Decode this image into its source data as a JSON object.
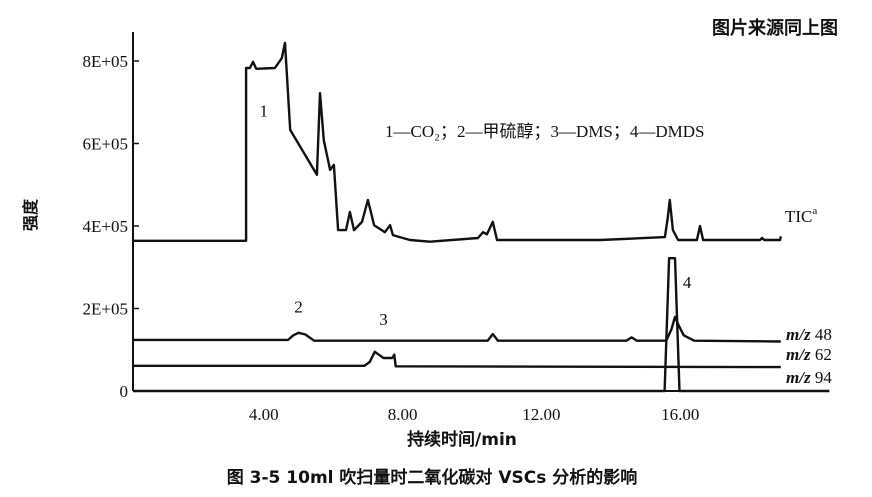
{
  "source_note": "图片来源同上图",
  "caption": "图 3-5   10ml 吹扫量时二氧化碳对 VSCs 分析的影响",
  "chart_data": {
    "type": "line",
    "title": "",
    "xlabel": "持续时间/min",
    "ylabel": "强度",
    "xlim": [
      0.2,
      20.3
    ],
    "ylim": [
      0,
      880000
    ],
    "x_ticks": [
      "4.00",
      "8.00",
      "12.00",
      "16.00"
    ],
    "x_tick_values": [
      4,
      8,
      12,
      16
    ],
    "y_ticks": [
      "0",
      "2E+05",
      "4E+05",
      "6E+05",
      "8E+05"
    ],
    "y_tick_values": [
      0,
      200000,
      400000,
      600000,
      800000
    ],
    "grid": false,
    "legend_text": "1—CO₂；2—甲硫醇；3—DMS；4—DMDS",
    "peak_labels": [
      {
        "text": "1",
        "x": 4.0,
        "y": 665000
      },
      {
        "text": "2",
        "x": 5.0,
        "y": 190000
      },
      {
        "text": "3",
        "x": 7.45,
        "y": 160000
      },
      {
        "text": "4",
        "x": 16.2,
        "y": 250000
      }
    ],
    "series": [
      {
        "name": "TIC",
        "name_sup": "a",
        "x": [
          0.23,
          3.49,
          3.49,
          3.6,
          3.69,
          3.78,
          4.32,
          4.52,
          4.61,
          4.76,
          5.53,
          5.62,
          5.73,
          5.91,
          6.02,
          6.14,
          6.37,
          6.48,
          6.6,
          6.83,
          7.0,
          7.18,
          7.49,
          7.64,
          7.72,
          8.21,
          8.79,
          10.17,
          10.32,
          10.43,
          10.6,
          10.72,
          13.69,
          15.56,
          15.64,
          15.7,
          15.79,
          15.94,
          16.48,
          16.57,
          16.66,
          18.3,
          18.36,
          18.42,
          18.88,
          18.9
        ],
        "y": [
          364000,
          364000,
          783000,
          783000,
          798000,
          781000,
          783000,
          807000,
          844000,
          633000,
          524000,
          722000,
          608000,
          536000,
          548000,
          390000,
          390000,
          434000,
          390000,
          410000,
          463000,
          402000,
          385000,
          402000,
          378000,
          366000,
          362000,
          371000,
          385000,
          380000,
          410000,
          366000,
          366000,
          373000,
          419000,
          463000,
          390000,
          366000,
          366000,
          400000,
          366000,
          366000,
          371000,
          366000,
          366000,
          375000
        ]
      },
      {
        "name": "m/z 48",
        "x": [
          0.23,
          4.7,
          4.85,
          5.0,
          5.2,
          5.45,
          10.45,
          10.6,
          10.75,
          14.45,
          14.6,
          14.75,
          15.6,
          15.75,
          15.85,
          15.95,
          16.1,
          16.4,
          18.9
        ],
        "y": [
          124000,
          124000,
          135000,
          141000,
          137000,
          122000,
          122000,
          138000,
          122000,
          122000,
          130000,
          122000,
          122000,
          150000,
          180000,
          160000,
          135000,
          122000,
          120000
        ]
      },
      {
        "name": "m/z 62",
        "x": [
          0.23,
          6.9,
          7.05,
          7.2,
          7.45,
          7.7,
          7.76,
          7.8,
          18.9
        ],
        "y": [
          61000,
          61000,
          70000,
          95000,
          80000,
          80000,
          88000,
          60000,
          58000
        ]
      },
      {
        "name": "m/z 94",
        "x": [
          0.23,
          15.55,
          15.68,
          15.85,
          15.98,
          16.05,
          20.3
        ],
        "y": [
          0,
          0,
          322000,
          322000,
          0,
          0,
          0
        ]
      }
    ]
  }
}
